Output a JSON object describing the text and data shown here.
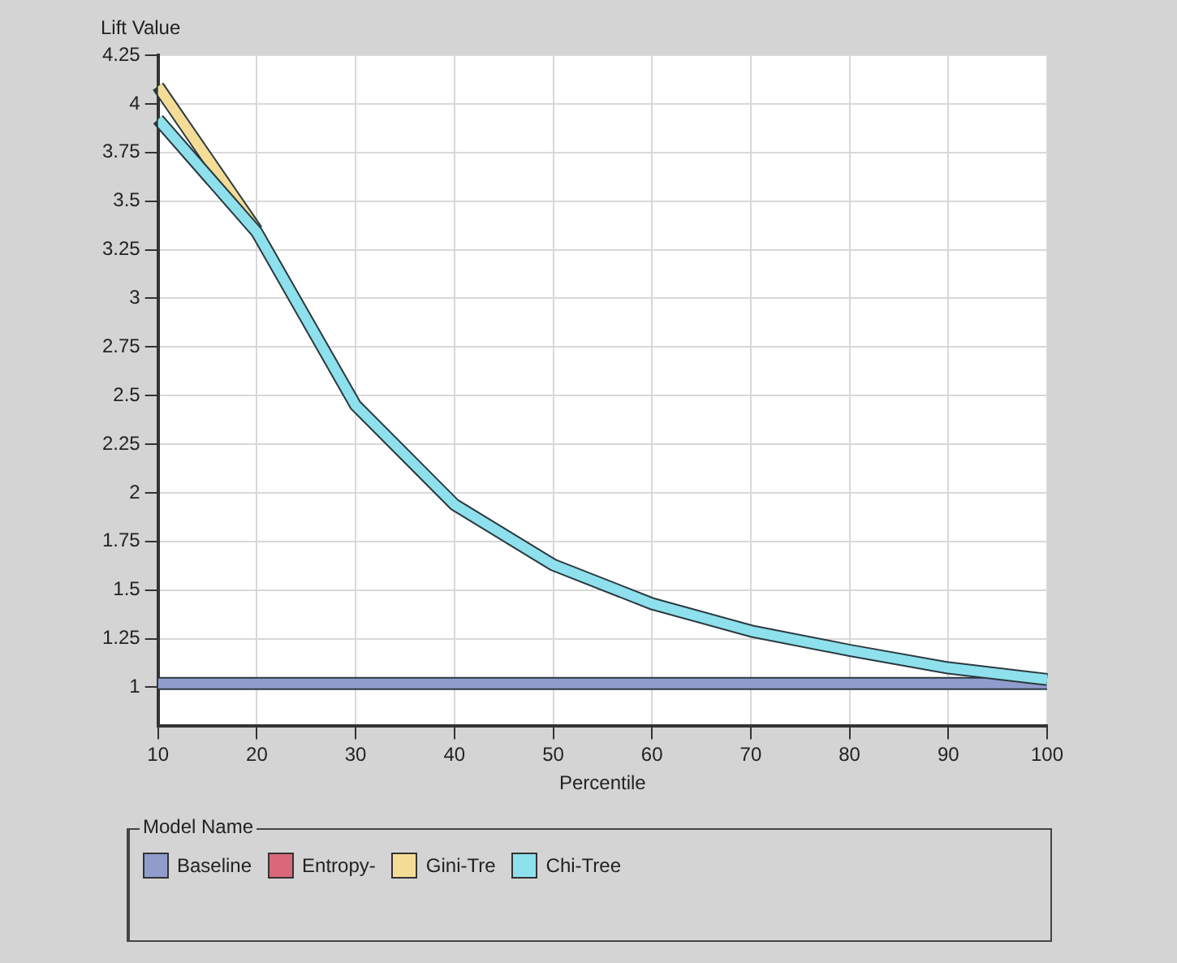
{
  "chart_data": {
    "type": "line",
    "xlabel": "Percentile",
    "ylabel": "Lift Value",
    "legend_title": "Model Name",
    "x": [
      10,
      20,
      30,
      40,
      50,
      60,
      70,
      80,
      90,
      100
    ],
    "series": [
      {
        "name": "Baseline",
        "color": "#8f9ccc",
        "values": [
          1.02,
          1.02,
          1.02,
          1.02,
          1.02,
          1.02,
          1.02,
          1.02,
          1.02,
          1.02
        ]
      },
      {
        "name": "Entropy-",
        "color": "#d9687a",
        "values": [
          null,
          null,
          null,
          null,
          null,
          null,
          null,
          null,
          null,
          null
        ]
      },
      {
        "name": "Gini-Tre",
        "color": "#f5dc96",
        "values": [
          4.09,
          3.35,
          null,
          null,
          null,
          null,
          null,
          null,
          null,
          null
        ]
      },
      {
        "name": "Chi-Tree",
        "color": "#8ee0ec",
        "values": [
          3.92,
          3.34,
          2.45,
          1.94,
          1.63,
          1.43,
          1.29,
          1.19,
          1.1,
          1.04
        ]
      }
    ],
    "xlim": [
      10,
      100
    ],
    "xticks": [
      10,
      20,
      30,
      40,
      50,
      60,
      70,
      80,
      90,
      100
    ],
    "ylim": [
      0.8,
      4.25
    ],
    "yticks": [
      1,
      1.25,
      1.5,
      1.75,
      2,
      2.25,
      2.5,
      2.75,
      3,
      3.25,
      3.5,
      3.75,
      4,
      4.25
    ],
    "grid": true,
    "legend": "bottom",
    "marker": "none",
    "line_style": "solid"
  }
}
